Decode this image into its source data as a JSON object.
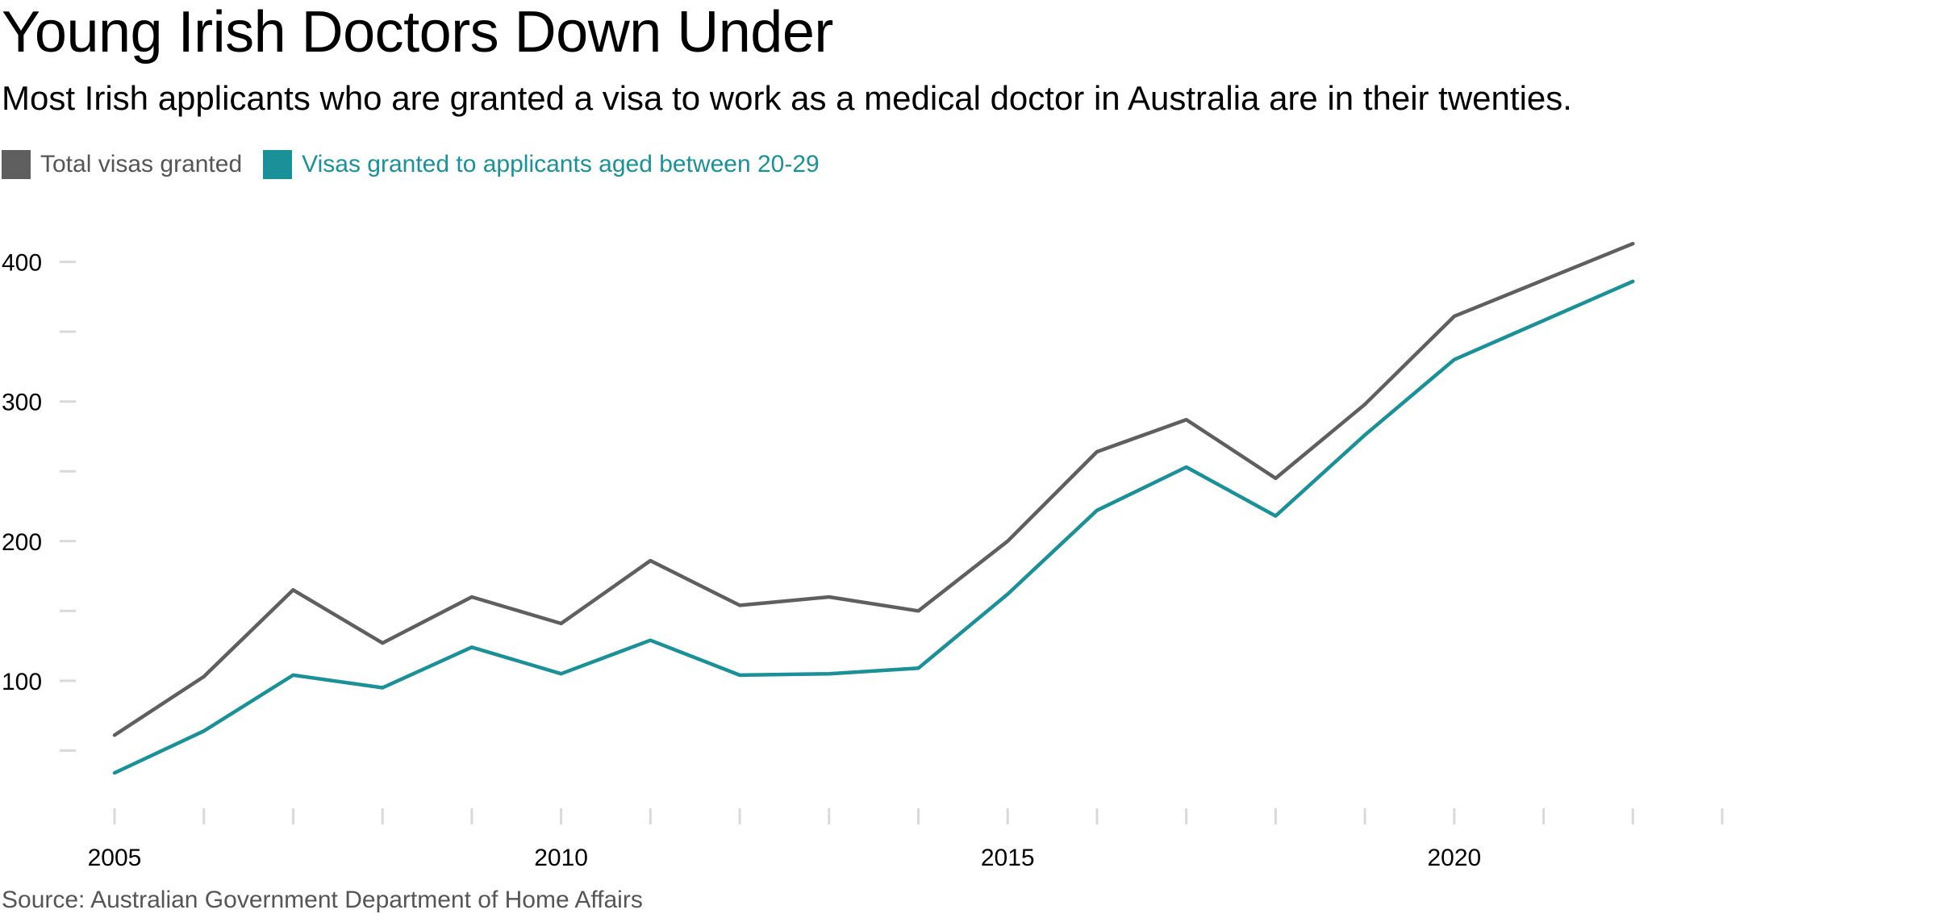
{
  "title": "Young Irish Doctors Down Under",
  "subtitle": "Most Irish applicants who are granted a visa to work as a medical doctor in Australia are in their twenties.",
  "source": "Source: Australian Government Department of Home Affairs",
  "legend": [
    {
      "label": "Total visas granted",
      "color": "#5f5f5f"
    },
    {
      "label": "Visas granted to applicants aged between 20-29",
      "color": "#1a9199"
    }
  ],
  "chart_data": {
    "type": "line",
    "title": "Young Irish Doctors Down Under",
    "subtitle": "Most Irish applicants who are granted a visa to work as a medical doctor in Australia are in their twenties.",
    "x": [
      2005,
      2006,
      2007,
      2008,
      2009,
      2010,
      2011,
      2012,
      2013,
      2014,
      2015,
      2016,
      2017,
      2018,
      2019,
      2020,
      2021,
      2022
    ],
    "series": [
      {
        "name": "Total visas granted",
        "color": "#5f5f5f",
        "values": [
          61,
          103,
          165,
          127,
          160,
          141,
          186,
          154,
          160,
          150,
          200,
          264,
          287,
          245,
          298,
          361,
          387,
          413
        ]
      },
      {
        "name": "Visas granted to applicants aged between 20-29",
        "color": "#1a9199",
        "values": [
          34,
          64,
          104,
          95,
          124,
          105,
          129,
          104,
          105,
          109,
          162,
          222,
          253,
          218,
          276,
          330,
          358,
          386
        ]
      }
    ],
    "x_ticks": [
      2005,
      2006,
      2007,
      2008,
      2009,
      2010,
      2011,
      2012,
      2013,
      2014,
      2015,
      2016,
      2017,
      2018,
      2019,
      2020,
      2021,
      2022,
      2023
    ],
    "x_tick_labels": [
      "2005",
      "2010",
      "2015",
      "2020"
    ],
    "y_ticks": [
      50,
      100,
      150,
      200,
      250,
      300,
      350,
      400
    ],
    "y_tick_labels": [
      "100",
      "200",
      "300",
      "400"
    ],
    "xlim": [
      2005,
      2023
    ],
    "ylim": [
      30,
      420
    ],
    "xlabel": "",
    "ylabel": "",
    "grid": false,
    "legend_position": "top-left"
  }
}
